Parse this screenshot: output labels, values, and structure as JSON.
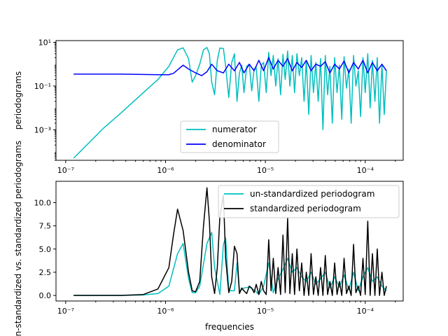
{
  "chart_data": [
    {
      "type": "line",
      "xscale": "log",
      "yscale": "log",
      "xlim": [
        8e-08,
        0.00024
      ],
      "ylim": [
        4e-05,
        12
      ],
      "xlabel": "",
      "ylabel": "periodograms",
      "xticks": [
        "10⁻⁷",
        "10⁻⁶",
        "10⁻⁵",
        "10⁻⁴"
      ],
      "yticks": [
        "10⁻³",
        "10⁻¹",
        "10¹"
      ],
      "legend": "lower-center",
      "series": [
        {
          "name": "numerator",
          "color": "#00bfbf",
          "x": [
            1.2e-07,
            2.4e-07,
            3.6e-07,
            6e-07,
            8.4e-07,
            1.08e-06,
            1.2e-06,
            1.32e-06,
            1.5e-06,
            1.7e-06,
            1.85e-06,
            2e-06,
            2.2e-06,
            2.4e-06,
            2.6e-06,
            2.75e-06,
            2.9e-06,
            3.1e-06,
            3.3e-06,
            3.5e-06,
            3.8e-06,
            4e-06,
            4.3e-06,
            4.6e-06,
            4.9e-06,
            5.2e-06,
            5.5e-06,
            5.8e-06,
            6.1e-06,
            6.5e-06,
            6.9e-06,
            7.3e-06,
            7.7e-06,
            8.1e-06,
            8.6e-06,
            9.1e-06,
            9.6e-06,
            1.02e-05,
            1.08e-05,
            1.14e-05,
            1.2e-05,
            1.27e-05,
            1.34e-05,
            1.42e-05,
            1.5e-05,
            1.58e-05,
            1.67e-05,
            1.76e-05,
            1.86e-05,
            1.96e-05,
            2.07e-05,
            2.19e-05,
            2.31e-05,
            2.44e-05,
            2.57e-05,
            2.72e-05,
            2.87e-05,
            3.03e-05,
            3.2e-05,
            3.38e-05,
            3.57e-05,
            3.77e-05,
            3.98e-05,
            4.2e-05,
            4.43e-05,
            4.68e-05,
            4.94e-05,
            5.22e-05,
            5.51e-05,
            5.82e-05,
            6.14e-05,
            6.49e-05,
            6.85e-05,
            7.23e-05,
            7.64e-05,
            8.06e-05,
            8.51e-05,
            8.99e-05,
            9.49e-05,
            0.0001,
            0.000106,
            0.000112,
            0.000118,
            0.000125,
            0.000132,
            0.000139,
            0.000147,
            0.000155,
            0.000163
          ],
          "y": [
            5e-05,
            0.0012,
            0.006,
            0.05,
            0.2,
            0.8,
            2.0,
            4.5,
            5.6,
            1.8,
            0.15,
            0.3,
            1.0,
            4.5,
            5.8,
            3.0,
            0.15,
            0.04,
            1.5,
            5.5,
            5.2,
            0.8,
            0.03,
            1.2,
            3.0,
            0.02,
            0.4,
            0.9,
            0.05,
            0.8,
            1.0,
            0.06,
            0.6,
            0.7,
            0.02,
            0.9,
            1.2,
            0.05,
            3.5,
            0.3,
            2.5,
            0.1,
            1.8,
            0.04,
            2.8,
            0.2,
            4.0,
            0.1,
            2.5,
            0.05,
            3.0,
            0.3,
            2.0,
            0.02,
            1.5,
            0.005,
            2.5,
            0.05,
            1.2,
            0.02,
            1.8,
            0.001,
            2.5,
            0.04,
            0.8,
            0.002,
            2.0,
            0.05,
            0.9,
            0.003,
            2.2,
            0.08,
            0.6,
            0.002,
            2.5,
            0.1,
            0.5,
            0.004,
            2.0,
            0.05,
            3.0,
            0.01,
            1.5,
            0.02,
            2.0,
            0.002,
            1.0,
            0.005,
            0.5
          ]
        },
        {
          "name": "denominator",
          "color": "#0000ff",
          "x": [
            1.2e-07,
            3.6e-07,
            6e-07,
            8.4e-07,
            1.08e-06,
            1.2e-06,
            1.32e-06,
            1.5e-06,
            1.7e-06,
            2e-06,
            2.3e-06,
            2.6e-06,
            2.9e-06,
            3.3e-06,
            3.8e-06,
            4.3e-06,
            4.9e-06,
            5.5e-06,
            6.1e-06,
            6.9e-06,
            7.7e-06,
            8.6e-06,
            9.6e-06,
            1.08e-05,
            1.2e-05,
            1.34e-05,
            1.5e-05,
            1.67e-05,
            1.86e-05,
            2.07e-05,
            2.31e-05,
            2.57e-05,
            2.87e-05,
            3.2e-05,
            3.57e-05,
            3.98e-05,
            4.43e-05,
            4.94e-05,
            5.51e-05,
            6.14e-05,
            6.85e-05,
            7.64e-05,
            8.51e-05,
            9.49e-05,
            0.000106,
            0.000118,
            0.000132,
            0.000147,
            0.000163
          ],
          "y": [
            0.35,
            0.35,
            0.34,
            0.33,
            0.33,
            0.38,
            0.55,
            0.9,
            0.6,
            0.4,
            0.3,
            0.45,
            1.0,
            0.5,
            0.4,
            1.0,
            0.5,
            1.2,
            0.4,
            1.0,
            0.5,
            1.5,
            0.5,
            2.0,
            0.6,
            1.5,
            0.8,
            1.8,
            0.5,
            1.2,
            0.7,
            1.5,
            0.5,
            1.0,
            0.8,
            1.3,
            0.4,
            1.0,
            0.6,
            1.4,
            0.4,
            1.2,
            0.6,
            1.5,
            0.4,
            1.2,
            0.5,
            1.0,
            0.5
          ]
        }
      ]
    },
    {
      "type": "line",
      "xscale": "log",
      "xlim": [
        8e-08,
        0.00024
      ],
      "ylim": [
        -0.6,
        12.3
      ],
      "xlabel": "frequencies",
      "ylabel": "un-standardized vs. standardized periodograms",
      "xticks": [
        "10⁻⁷",
        "10⁻⁶",
        "10⁻⁵",
        "10⁻⁴"
      ],
      "yticks": [
        "0.0",
        "2.5",
        "5.0",
        "7.5",
        "10.0"
      ],
      "legend": "upper-right",
      "series": [
        {
          "name": "un-standardized periodogram",
          "color": "#00bfbf",
          "x": [
            1.2e-07,
            3.6e-07,
            6e-07,
            8.4e-07,
            1.08e-06,
            1.32e-06,
            1.5e-06,
            1.7e-06,
            1.85e-06,
            2e-06,
            2.2e-06,
            2.6e-06,
            2.9e-06,
            3.1e-06,
            3.5e-06,
            3.8e-06,
            4e-06,
            4.3e-06,
            4.9e-06,
            5.2e-06,
            5.5e-06,
            6.1e-06,
            6.9e-06,
            7.7e-06,
            8.6e-06,
            9.6e-06,
            1.08e-05,
            1.2e-05,
            1.34e-05,
            1.5e-05,
            1.67e-05,
            1.86e-05,
            2.07e-05,
            2.31e-05,
            2.57e-05,
            2.87e-05,
            3.2e-05,
            3.57e-05,
            3.98e-05,
            4.43e-05,
            4.94e-05,
            5.51e-05,
            6.14e-05,
            6.85e-05,
            7.64e-05,
            8.51e-05,
            9.49e-05,
            0.000106,
            0.000118,
            0.000132,
            0.000147,
            0.000163
          ],
          "y": [
            0.0,
            0.0,
            0.05,
            0.2,
            1.0,
            4.5,
            5.6,
            1.8,
            0.3,
            0.3,
            1.0,
            5.6,
            6.8,
            3.0,
            0.1,
            5.5,
            6.2,
            0.5,
            0.5,
            3.5,
            0.4,
            0.8,
            0.9,
            0.6,
            0.1,
            1.0,
            3.5,
            0.3,
            1.8,
            2.8,
            4.0,
            2.5,
            3.0,
            2.0,
            1.5,
            2.5,
            1.2,
            1.8,
            2.5,
            0.8,
            2.0,
            0.9,
            2.2,
            0.6,
            2.5,
            0.5,
            2.0,
            3.0,
            1.5,
            2.0,
            1.0,
            0.5
          ]
        },
        {
          "name": "standardized periodogram",
          "color": "#000000",
          "x": [
            1.2e-07,
            3.6e-07,
            6e-07,
            8.4e-07,
            1.08e-06,
            1.2e-06,
            1.32e-06,
            1.5e-06,
            1.7e-06,
            1.85e-06,
            2e-06,
            2.2e-06,
            2.4e-06,
            2.6e-06,
            2.75e-06,
            2.9e-06,
            3.1e-06,
            3.3e-06,
            3.5e-06,
            3.8e-06,
            4e-06,
            4.3e-06,
            4.6e-06,
            4.9e-06,
            5.2e-06,
            5.5e-06,
            5.8e-06,
            6.1e-06,
            6.5e-06,
            6.9e-06,
            7.3e-06,
            7.7e-06,
            8.1e-06,
            8.6e-06,
            9.1e-06,
            9.6e-06,
            1.02e-05,
            1.08e-05,
            1.14e-05,
            1.2e-05,
            1.27e-05,
            1.34e-05,
            1.42e-05,
            1.5e-05,
            1.58e-05,
            1.67e-05,
            1.76e-05,
            1.86e-05,
            1.96e-05,
            2.07e-05,
            2.19e-05,
            2.31e-05,
            2.44e-05,
            2.57e-05,
            2.72e-05,
            2.87e-05,
            3.03e-05,
            3.2e-05,
            3.38e-05,
            3.57e-05,
            3.77e-05,
            3.98e-05,
            4.2e-05,
            4.43e-05,
            4.68e-05,
            4.94e-05,
            5.22e-05,
            5.51e-05,
            5.82e-05,
            6.14e-05,
            6.49e-05,
            6.85e-05,
            7.23e-05,
            7.64e-05,
            8.06e-05,
            8.51e-05,
            8.99e-05,
            9.49e-05,
            0.0001,
            0.000106,
            0.000112,
            0.000118,
            0.000125,
            0.000132,
            0.000139,
            0.000147,
            0.000155,
            0.000163
          ],
          "y": [
            0.0,
            0.0,
            0.1,
            0.7,
            3.0,
            6.5,
            9.3,
            7.0,
            2.5,
            0.5,
            0.4,
            1.5,
            7.5,
            11.6,
            8.0,
            2.0,
            0.2,
            3.0,
            8.5,
            10.8,
            4.0,
            0.3,
            1.5,
            5.3,
            4.5,
            0.2,
            0.8,
            0.5,
            0.2,
            1.0,
            0.8,
            0.3,
            1.2,
            0.1,
            1.5,
            0.5,
            0.1,
            6.0,
            0.5,
            4.0,
            0.2,
            3.0,
            0.1,
            6.5,
            0.3,
            8.3,
            0.2,
            4.5,
            0.1,
            5.0,
            0.5,
            3.5,
            0.0,
            2.5,
            0.0,
            4.5,
            0.1,
            2.0,
            0.0,
            3.0,
            0.0,
            4.3,
            0.1,
            1.5,
            0.0,
            3.5,
            0.1,
            1.5,
            0.0,
            4.0,
            0.2,
            1.0,
            0.0,
            5.5,
            0.3,
            1.0,
            0.0,
            4.0,
            0.1,
            8.0,
            0.0,
            4.5,
            0.0,
            5.0,
            0.0,
            2.5,
            0.0,
            1.0
          ]
        }
      ]
    }
  ]
}
